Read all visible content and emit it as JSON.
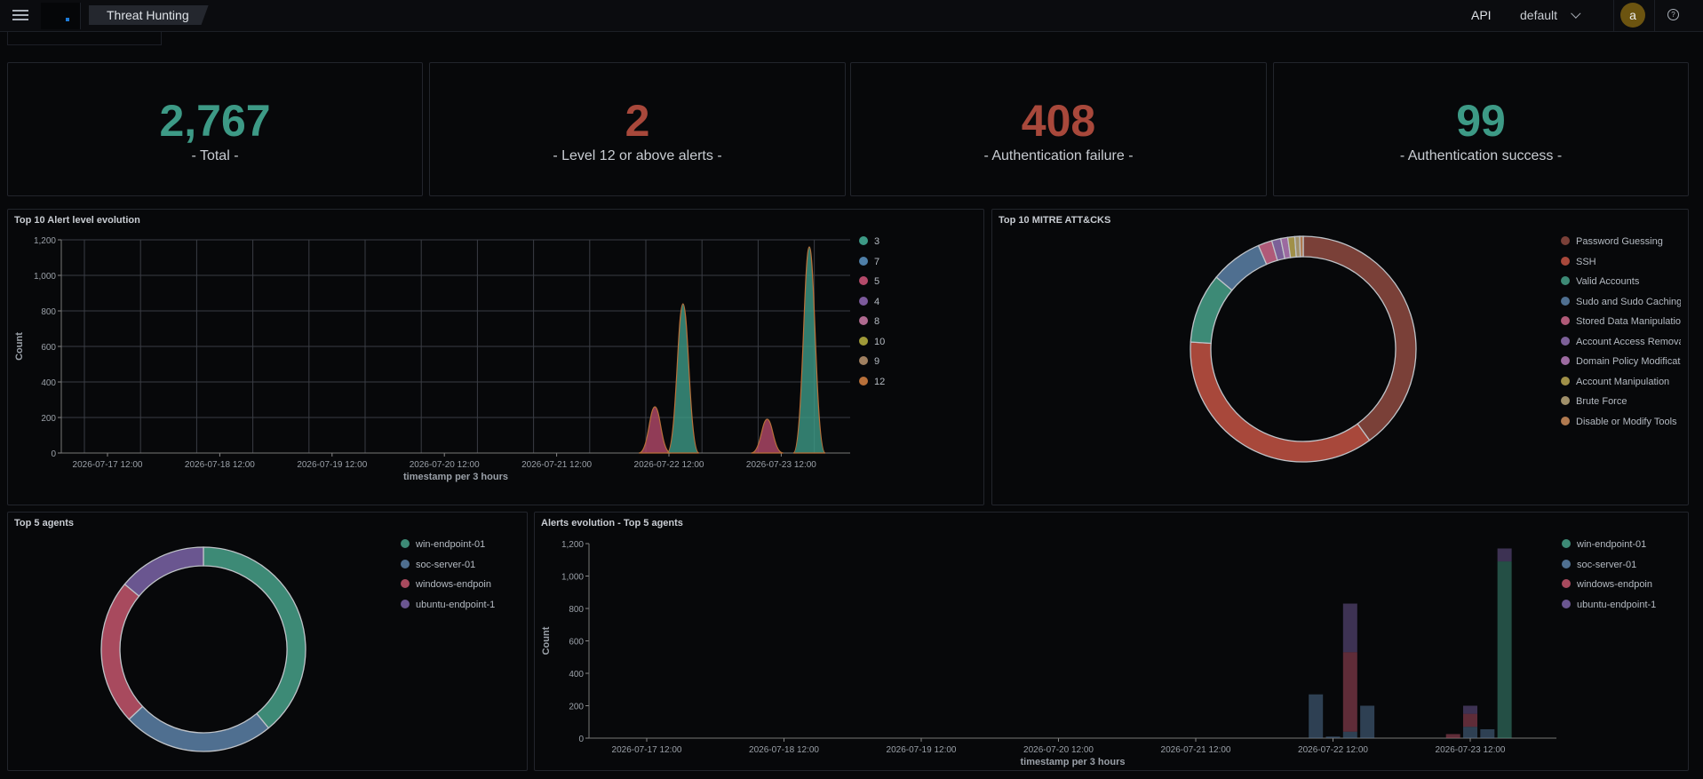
{
  "header": {
    "breadcrumb": "Threat Hunting",
    "api_label": "API",
    "space": "default",
    "avatar_initial": "a",
    "help": "?"
  },
  "metrics": [
    {
      "value": "2,767",
      "label": "- Total -",
      "color": "#3d9a86"
    },
    {
      "value": "2",
      "label": "- Level 12 or above alerts -",
      "color": "#a8483b"
    },
    {
      "value": "408",
      "label": "- Authentication failure -",
      "color": "#a8483b"
    },
    {
      "value": "99",
      "label": "- Authentication success -",
      "color": "#3d9a86"
    }
  ],
  "alert_level": {
    "title": "Top 10 Alert level evolution",
    "legend": [
      {
        "label": "3",
        "color": "#3d9a86"
      },
      {
        "label": "7",
        "color": "#4f7fa8"
      },
      {
        "label": "5",
        "color": "#b44a6a"
      },
      {
        "label": "4",
        "color": "#7c5a9c"
      },
      {
        "label": "8",
        "color": "#b06a90"
      },
      {
        "label": "10",
        "color": "#a09a38"
      },
      {
        "label": "9",
        "color": "#a08060"
      },
      {
        "label": "12",
        "color": "#b8703a"
      }
    ]
  },
  "mitre": {
    "title": "Top 10 MITRE ATT&CKS",
    "legend": [
      {
        "label": "Password Guessing",
        "color": "#7a4038"
      },
      {
        "label": "SSH",
        "color": "#a8483b"
      },
      {
        "label": "Valid Accounts",
        "color": "#3d8a76"
      },
      {
        "label": "Sudo and Sudo Caching",
        "color": "#4f6f90"
      },
      {
        "label": "Stored Data Manipulation",
        "color": "#b05a78"
      },
      {
        "label": "Account Access Removal",
        "color": "#7c6098"
      },
      {
        "label": "Domain Policy Modification",
        "color": "#9c6aa0"
      },
      {
        "label": "Account Manipulation",
        "color": "#a09048"
      },
      {
        "label": "Brute Force",
        "color": "#a0906a"
      },
      {
        "label": "Disable or Modify Tools",
        "color": "#b07a50"
      }
    ]
  },
  "top_agents": {
    "title": "Top 5 agents",
    "legend": [
      {
        "label": "win-endpoint-01",
        "color": "#3d8a76"
      },
      {
        "label": "soc-server-01",
        "color": "#4f6f90"
      },
      {
        "label": "windows-endpoin",
        "color": "#a84a5e"
      },
      {
        "label": "ubuntu-endpoint-1",
        "color": "#6a5690"
      }
    ]
  },
  "agents_evolution": {
    "title": "Alerts evolution - Top 5 agents",
    "legend": [
      {
        "label": "win-endpoint-01",
        "color": "#3d8a76"
      },
      {
        "label": "soc-server-01",
        "color": "#4f6f90"
      },
      {
        "label": "windows-endpoin",
        "color": "#a84a5e"
      },
      {
        "label": "ubuntu-endpoint-1",
        "color": "#6a5690"
      }
    ]
  },
  "chart_data": [
    {
      "type": "area",
      "title": "Top 10 Alert level evolution",
      "xlabel": "timestamp per 3 hours",
      "ylabel": "Count",
      "ylim": [
        0,
        1200
      ],
      "y_ticks": [
        0,
        200,
        400,
        600,
        800,
        1000,
        1200
      ],
      "x_ticks": [
        "2026-07-17 12:00",
        "2026-07-18 12:00",
        "2026-07-19 12:00",
        "2026-07-20 12:00",
        "2026-07-21 12:00",
        "2026-07-22 12:00",
        "2026-07-23 12:00"
      ],
      "grid": true,
      "legend_position": "right",
      "peaks": [
        {
          "x": "2026-07-22 09:00",
          "value": 260,
          "series": "5"
        },
        {
          "x": "2026-07-22 15:00",
          "value": 840,
          "series": "3"
        },
        {
          "x": "2026-07-23 09:00",
          "value": 190,
          "series": "5"
        },
        {
          "x": "2026-07-23 18:00",
          "value": 1160,
          "series": "3"
        }
      ]
    },
    {
      "type": "pie",
      "title": "Top 10 MITRE ATT&CKS",
      "categories": [
        "Password Guessing",
        "SSH",
        "Valid Accounts",
        "Sudo and Sudo Caching",
        "Stored Data Manipulation",
        "Account Access Removal",
        "Domain Policy Modification",
        "Account Manipulation",
        "Brute Force",
        "Disable or Modify Tools"
      ],
      "values": [
        40,
        36,
        10,
        7.5,
        2,
        1.3,
        1,
        1,
        0.7,
        0.5
      ],
      "legend_position": "right"
    },
    {
      "type": "pie",
      "title": "Top 5 agents",
      "categories": [
        "win-endpoint-01",
        "soc-server-01",
        "windows-endpoin",
        "ubuntu-endpoint-1"
      ],
      "values": [
        39,
        24,
        23,
        14
      ],
      "legend_position": "right"
    },
    {
      "type": "bar",
      "title": "Alerts evolution - Top 5 agents",
      "xlabel": "timestamp per 3 hours",
      "ylabel": "Count",
      "ylim": [
        0,
        1200
      ],
      "y_ticks": [
        0,
        200,
        400,
        600,
        800,
        1000,
        1200
      ],
      "x_ticks": [
        "2026-07-17 12:00",
        "2026-07-18 12:00",
        "2026-07-19 12:00",
        "2026-07-20 12:00",
        "2026-07-21 12:00",
        "2026-07-22 12:00",
        "2026-07-23 12:00"
      ],
      "legend_position": "right",
      "bars": [
        {
          "x": "2026-07-22 09:00",
          "soc-server-01": 270
        },
        {
          "x": "2026-07-22 12:00",
          "soc-server-01": 10
        },
        {
          "x": "2026-07-22 15:00",
          "soc-server-01": 40,
          "windows-endpoin": 490,
          "ubuntu-endpoint-1": 300
        },
        {
          "x": "2026-07-22 18:00",
          "soc-server-01": 200
        },
        {
          "x": "2026-07-23 09:00",
          "windows-endpoin": 25
        },
        {
          "x": "2026-07-23 12:00",
          "soc-server-01": 70,
          "windows-endpoin": 80,
          "ubuntu-endpoint-1": 50
        },
        {
          "x": "2026-07-23 15:00",
          "soc-server-01": 55
        },
        {
          "x": "2026-07-23 18:00",
          "win-endpoint-01": 1090,
          "ubuntu-endpoint-1": 80
        }
      ]
    }
  ]
}
